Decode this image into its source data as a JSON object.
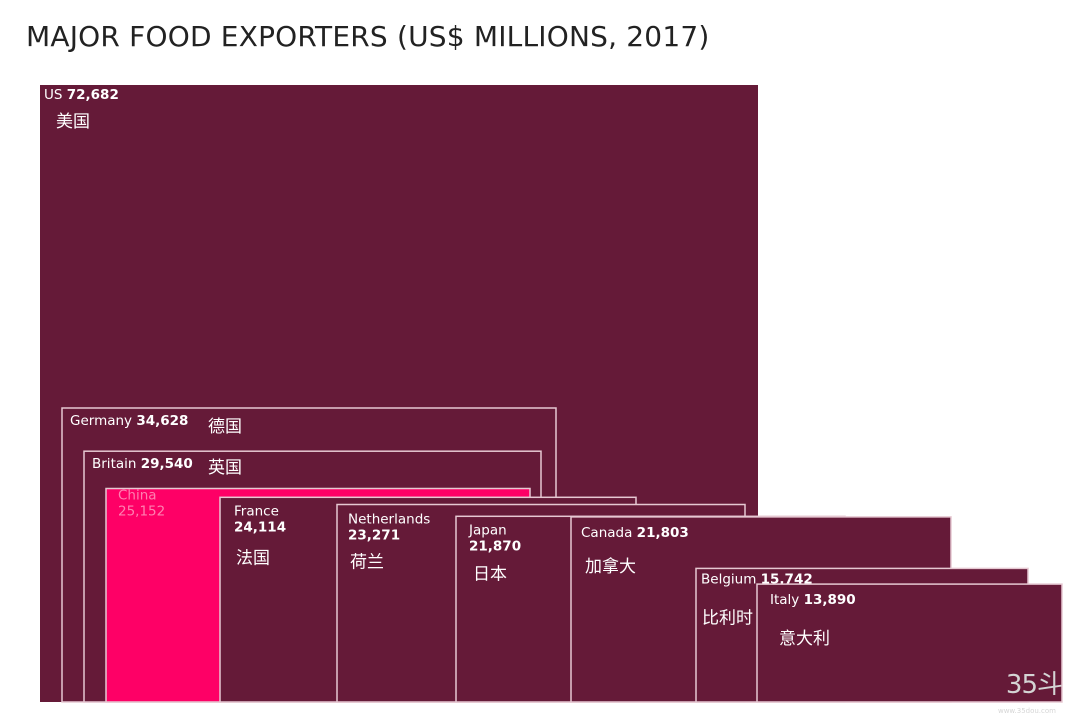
{
  "chart_data": {
    "type": "treemap",
    "title": "MAJOR FOOD EXPORTERS (US$ MILLIONS, 2017)",
    "units": "US$ millions",
    "year": 2017,
    "colors": {
      "box": "#651a38",
      "highlight": "#fe0066",
      "border": "#e6c8d2",
      "label": "#ffffff",
      "highlight_label": "#ff7fb0"
    },
    "series": [
      {
        "name": "US",
        "value": 72682,
        "value_label": "72,682",
        "chinese": "美国"
      },
      {
        "name": "Germany",
        "value": 34628,
        "value_label": "34,628",
        "chinese": "德国"
      },
      {
        "name": "Britain",
        "value": 29540,
        "value_label": "29,540",
        "chinese": "英国"
      },
      {
        "name": "China",
        "value": 25152,
        "value_label": "25,152",
        "chinese": "",
        "highlight": true
      },
      {
        "name": "France",
        "value": 24114,
        "value_label": "24,114",
        "chinese": "法国"
      },
      {
        "name": "Netherlands",
        "value": 23271,
        "value_label": "23,271",
        "chinese": "荷兰"
      },
      {
        "name": "Japan",
        "value": 21870,
        "value_label": "21,870",
        "chinese": "日本"
      },
      {
        "name": "Canada",
        "value": 21803,
        "value_label": "21,803",
        "chinese": "加拿大"
      },
      {
        "name": "Belgium",
        "value": 15742,
        "value_label": "15,742",
        "chinese": "比利时"
      },
      {
        "name": "Italy",
        "value": 13890,
        "value_label": "13,890",
        "chinese": "意大利"
      }
    ]
  },
  "watermark": {
    "text": "35斗",
    "sub": "www.35dou.com"
  }
}
